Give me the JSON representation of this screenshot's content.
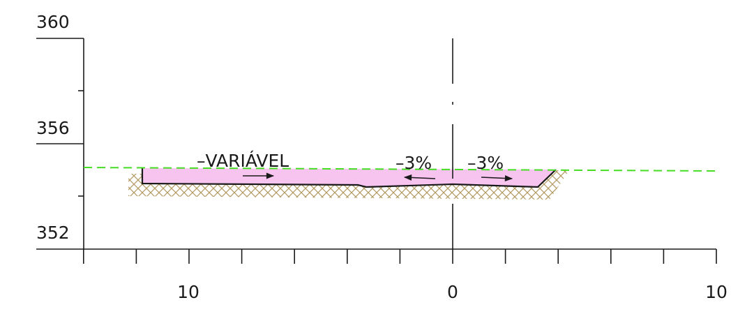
{
  "section": {
    "y_axis": {
      "tick_labels": [
        "360",
        "356",
        "352"
      ]
    },
    "x_axis": {
      "tick_labels": [
        "10",
        "0",
        "10"
      ]
    },
    "annotations": {
      "variable_width_label": "–VARIÁVEL",
      "left_slope_label": "–3%",
      "right_slope_label": "–3%"
    },
    "colors": {
      "pavement_fill": "#f7c3ef",
      "ground_line": "#44dd22",
      "hatch": "#b59c66",
      "ink": "#1a1a1a"
    }
  }
}
